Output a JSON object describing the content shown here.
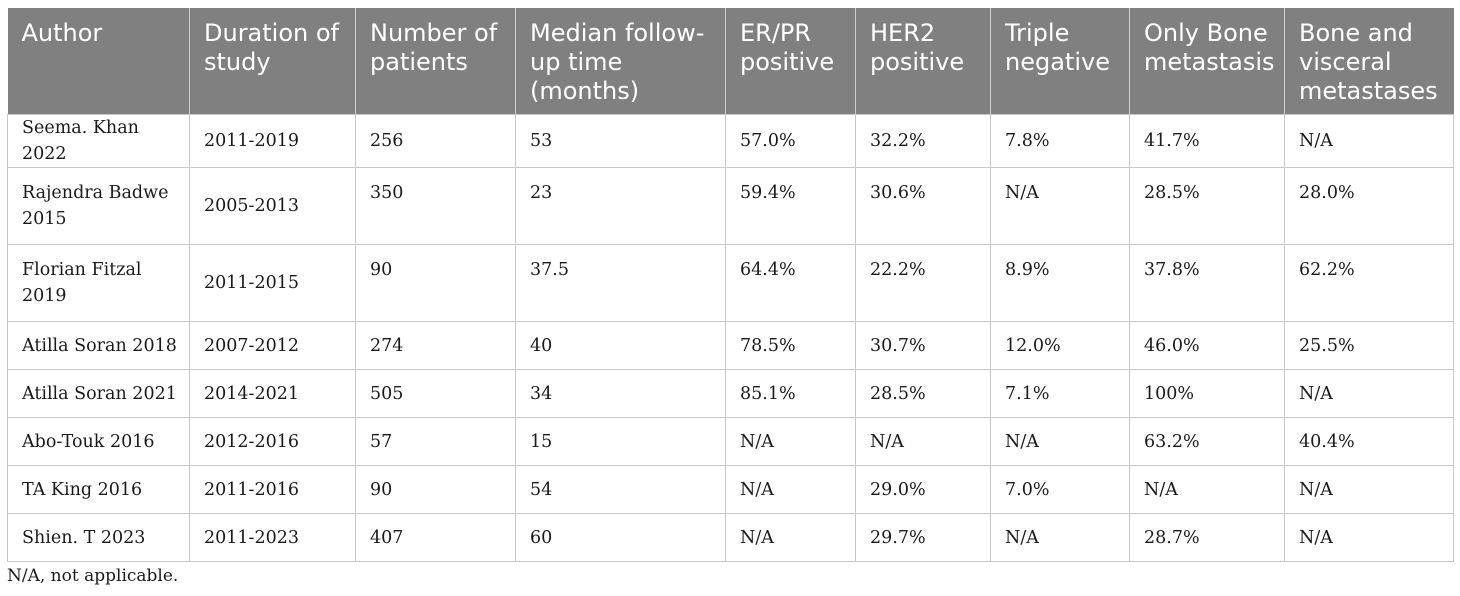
{
  "table": {
    "headers": [
      "Author",
      "Duration of study",
      "Number of patients",
      "Median follow-up time (months)",
      "ER/PR positive",
      "HER2 positive",
      "Triple negative",
      "Only Bone metastasis",
      "Bone and visceral metastases"
    ],
    "rows": [
      [
        "Seema. Khan 2022",
        "2011-2019",
        "256",
        "53",
        "57.0%",
        "32.2%",
        "7.8%",
        "41.7%",
        "N/A"
      ],
      [
        "Rajendra Badwe 2015",
        "2005-2013",
        "350",
        "23",
        "59.4%",
        "30.6%",
        "N/A",
        "28.5%",
        "28.0%"
      ],
      [
        "Florian Fitzal 2019",
        "2011-2015",
        "90",
        "37.5",
        "64.4%",
        "22.2%",
        "8.9%",
        "37.8%",
        "62.2%"
      ],
      [
        "Atilla Soran 2018",
        "2007-2012",
        "274",
        "40",
        "78.5%",
        "30.7%",
        "12.0%",
        "46.0%",
        "25.5%"
      ],
      [
        "Atilla Soran 2021",
        "2014-2021",
        "505",
        "34",
        "85.1%",
        "28.5%",
        "7.1%",
        "100%",
        "N/A"
      ],
      [
        "Abo-Touk 2016",
        "2012-2016",
        "57",
        "15",
        "N/A",
        "N/A",
        "N/A",
        "63.2%",
        "40.4%"
      ],
      [
        "TA King 2016",
        "2011-2016",
        "90",
        "54",
        "N/A",
        "29.0%",
        "7.0%",
        "N/A",
        "N/A"
      ],
      [
        "Shien. T 2023",
        "2011-2023",
        "407",
        "60",
        "N/A",
        "29.7%",
        "N/A",
        "28.7%",
        "N/A"
      ]
    ]
  },
  "footnote": "N/A, not applicable."
}
